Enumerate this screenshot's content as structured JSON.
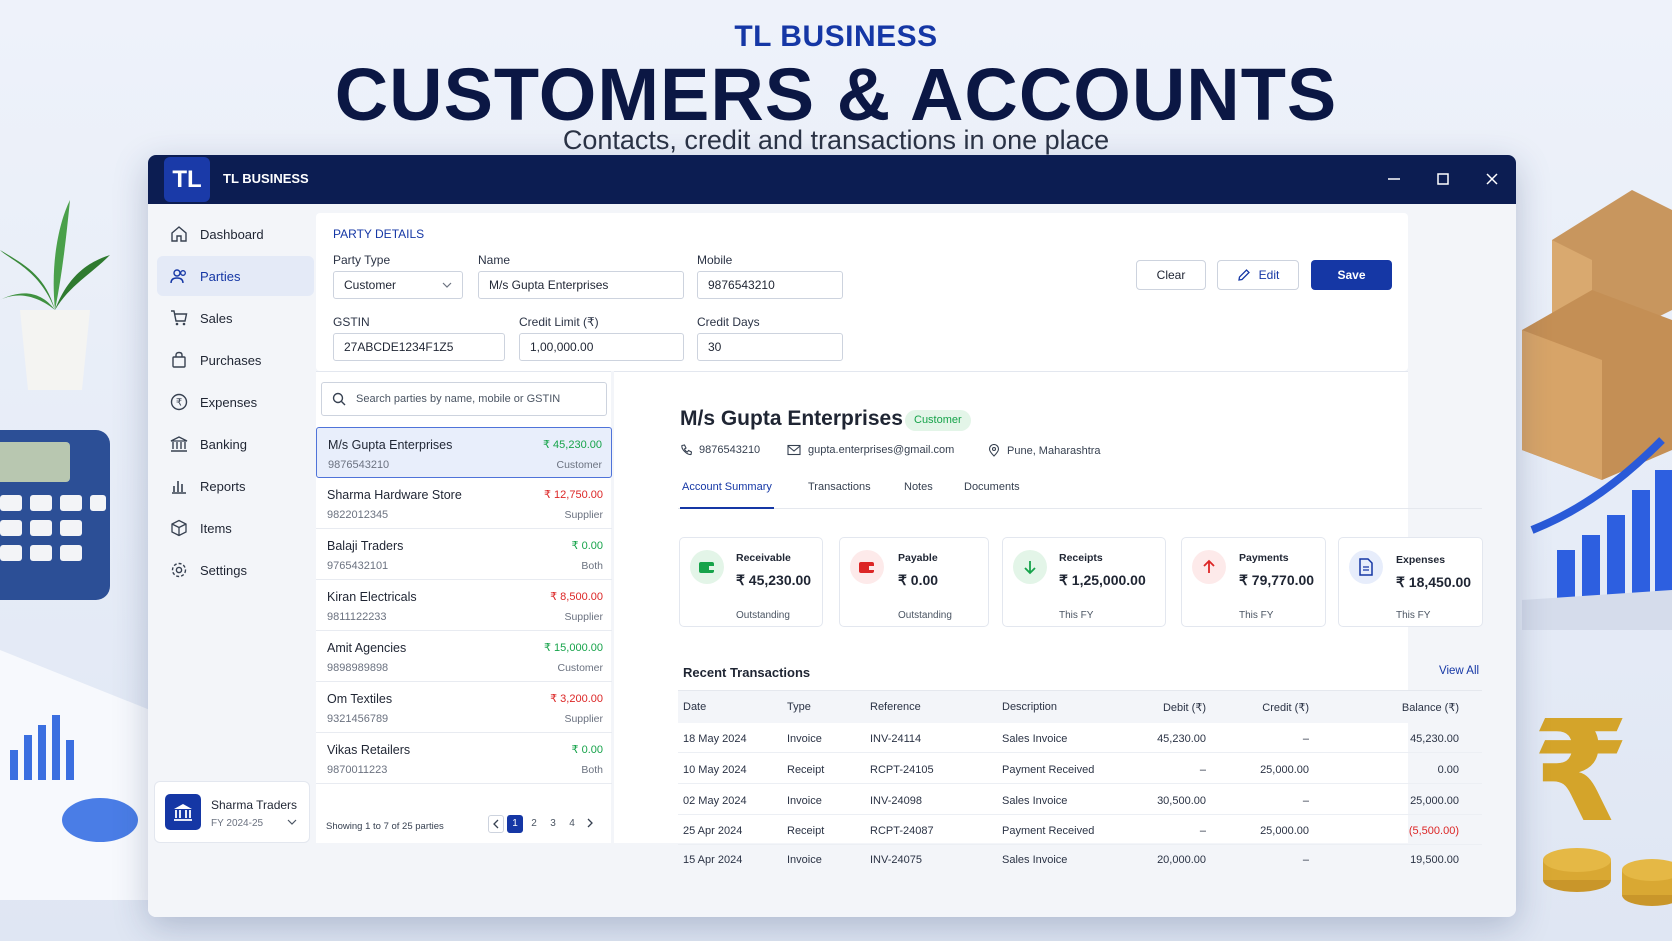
{
  "hero": {
    "brand": "TL BUSINESS",
    "title": "CUSTOMERS & ACCOUNTS",
    "subtitle": "Contacts, credit and transactions in one place"
  },
  "window": {
    "logo": "TL",
    "app_name": "TL BUSINESS",
    "controls": [
      "minimize-icon",
      "maximize-icon",
      "close-icon"
    ]
  },
  "sidebar": {
    "items": [
      {
        "label": "Dashboard",
        "icon": "home-icon"
      },
      {
        "label": "Parties",
        "icon": "users-icon",
        "active": true
      },
      {
        "label": "Sales",
        "icon": "cart-icon"
      },
      {
        "label": "Purchases",
        "icon": "bag-icon"
      },
      {
        "label": "Expenses",
        "icon": "rupee-circle-icon"
      },
      {
        "label": "Banking",
        "icon": "bank-icon"
      },
      {
        "label": "Reports",
        "icon": "bar-chart-icon"
      },
      {
        "label": "Items",
        "icon": "box-icon"
      },
      {
        "label": "Settings",
        "icon": "gear-icon"
      }
    ],
    "company": {
      "name": "Sharma Traders",
      "fy": "FY 2024-25"
    }
  },
  "form": {
    "section_title": "PARTY DETAILS",
    "party_type": {
      "label": "Party Type",
      "value": "Customer"
    },
    "name": {
      "label": "Name",
      "value": "M/s Gupta Enterprises"
    },
    "mobile": {
      "label": "Mobile",
      "value": "9876543210"
    },
    "gstin": {
      "label": "GSTIN",
      "value": "27ABCDE1234F1Z5"
    },
    "credit_limit": {
      "label": "Credit Limit (₹)",
      "value": "1,00,000.00"
    },
    "credit_days": {
      "label": "Credit Days",
      "value": "30"
    },
    "buttons": {
      "clear": "Clear",
      "edit": "Edit",
      "save": "Save"
    }
  },
  "party_list": {
    "search_placeholder": "Search parties by name, mobile or GSTIN",
    "parties": [
      {
        "name": "M/s Gupta Enterprises",
        "phone": "9876543210",
        "amount": "₹ 45,230.00",
        "type": "Customer",
        "color": "#16a34a"
      },
      {
        "name": "Sharma Hardware Store",
        "phone": "9822012345",
        "amount": "₹ 12,750.00",
        "type": "Supplier",
        "color": "#dc2626"
      },
      {
        "name": "Balaji Traders",
        "phone": "9765432101",
        "amount": "₹ 0.00",
        "type": "Both",
        "color": "#16a34a"
      },
      {
        "name": "Kiran Electricals",
        "phone": "9811122233",
        "amount": "₹ 8,500.00",
        "type": "Supplier",
        "color": "#dc2626"
      },
      {
        "name": "Amit Agencies",
        "phone": "9898989898",
        "amount": "₹ 15,000.00",
        "type": "Customer",
        "color": "#16a34a"
      },
      {
        "name": "Om Textiles",
        "phone": "9321456789",
        "amount": "₹ 3,200.00",
        "type": "Supplier",
        "color": "#dc2626"
      },
      {
        "name": "Vikas Retailers",
        "phone": "9870011223",
        "amount": "₹ 0.00",
        "type": "Both",
        "color": "#16a34a"
      }
    ],
    "footer": "Showing 1 to 7 of 25 parties",
    "pages": [
      "1",
      "2",
      "3",
      "4"
    ],
    "current_page": "1"
  },
  "detail": {
    "name": "M/s Gupta Enterprises",
    "badge": "Customer",
    "phone": "9876543210",
    "email": "gupta.enterprises@gmail.com",
    "location": "Pune, Maharashtra",
    "tabs": [
      "Account Summary",
      "Transactions",
      "Notes",
      "Documents"
    ],
    "active_tab": "Account Summary",
    "cards": [
      {
        "label": "Receivable",
        "value": "₹ 45,230.00",
        "sub": "Outstanding",
        "icon": "wallet-icon",
        "color": "#16a34a"
      },
      {
        "label": "Payable",
        "value": "₹ 0.00",
        "sub": "Outstanding",
        "icon": "wallet-icon",
        "color": "#dc2626"
      },
      {
        "label": "Receipts",
        "value": "₹ 1,25,000.00",
        "sub": "This FY",
        "icon": "arrow-down-icon",
        "color": "#16a34a"
      },
      {
        "label": "Payments",
        "value": "₹ 79,770.00",
        "sub": "This FY",
        "icon": "arrow-up-icon",
        "color": "#dc2626"
      },
      {
        "label": "Expenses",
        "value": "₹ 18,450.00",
        "sub": "This FY",
        "icon": "document-icon",
        "color": "#1537a5"
      }
    ],
    "recent": {
      "title": "Recent Transactions",
      "view_all": "View All",
      "columns": [
        "Date",
        "Type",
        "Reference",
        "Description",
        "Debit (₹)",
        "Credit (₹)",
        "Balance (₹)"
      ],
      "rows": [
        [
          "18 May 2024",
          "Invoice",
          "INV-24114",
          "Sales Invoice",
          "45,230.00",
          "–",
          "45,230.00"
        ],
        [
          "10 May 2024",
          "Receipt",
          "RCPT-24105",
          "Payment Received",
          "–",
          "25,000.00",
          "0.00"
        ],
        [
          "02 May 2024",
          "Invoice",
          "INV-24098",
          "Sales Invoice",
          "30,500.00",
          "–",
          "25,000.00"
        ],
        [
          "25 Apr 2024",
          "Receipt",
          "RCPT-24087",
          "Payment Received",
          "–",
          "25,000.00",
          "(5,500.00)"
        ],
        [
          "15 Apr 2024",
          "Invoice",
          "INV-24075",
          "Sales Invoice",
          "20,000.00",
          "–",
          "19,500.00"
        ]
      ]
    }
  }
}
